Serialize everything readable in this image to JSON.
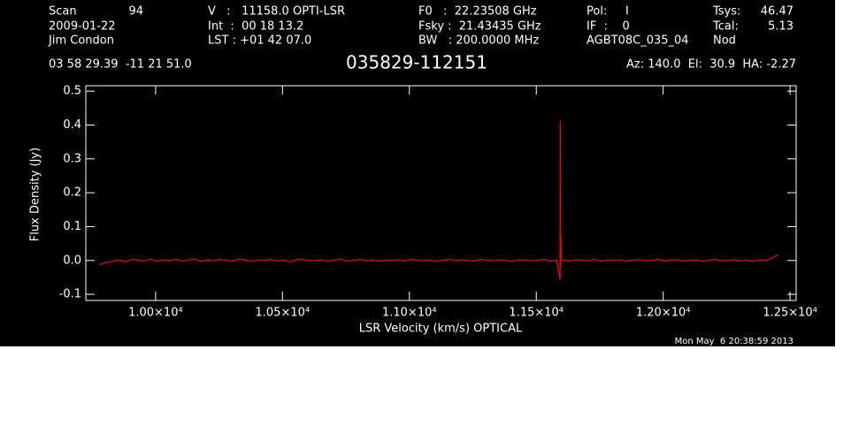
{
  "header": {
    "scan_label": "Scan",
    "scan": "94",
    "velocity": "V   :   11158.0 OPTI-LSR",
    "f0": "F0   :  22.23508 GHz",
    "pol": "Pol:     I",
    "tsys_label": "Tsys:",
    "tsys": "46.47",
    "date": "2009-01-22",
    "int": "Int  :  00 18 13.2",
    "fsky": "Fsky :  21.43435 GHz",
    "if": "IF  :    0",
    "tcal_label": "Tcal:",
    "tcal": "5.13",
    "observer": "Jim Condon",
    "lst": "LST : +01 42 07.0",
    "bw": "BW   : 200.0000 MHz",
    "project": "AGBT08C_035_04",
    "mode": "Nod",
    "coords": "03 58 29.39  -11 21 51.0",
    "azel": "Az: 140.0  El:  30.9  HA: -2.27"
  },
  "chart_data": {
    "type": "line",
    "title": "035829-112151",
    "x_label": "LSR Velocity (km/s) OPTICAL",
    "y_label": "Flux Density (Jy)",
    "timestamp": "Mon May  6 20:38:59 2013",
    "xlim": [
      9725,
      12524
    ],
    "ylim": [
      -0.118,
      0.516
    ],
    "xticks": [
      {
        "value": 10000,
        "label": "1.00×10⁴"
      },
      {
        "value": 10500,
        "label": "1.05×10⁴"
      },
      {
        "value": 11000,
        "label": "1.10×10⁴"
      },
      {
        "value": 11500,
        "label": "1.15×10⁴"
      },
      {
        "value": 12000,
        "label": "1.20×10⁴"
      },
      {
        "value": 12500,
        "label": "1.25×10⁴"
      }
    ],
    "yticks": [
      -0.1,
      {
        "value": 0,
        "label": "0.0"
      },
      0.1,
      0.2,
      0.3,
      0.4,
      0.5
    ],
    "series": [
      {
        "color": "#ff0000",
        "x": [
          9780,
          9805,
          9830,
          9855,
          9880,
          9905,
          9930,
          9955,
          9980,
          10005,
          10030,
          10055,
          10080,
          10105,
          10130,
          10155,
          10180,
          10205,
          10230,
          10255,
          10280,
          10305,
          10330,
          10355,
          10380,
          10405,
          10430,
          10455,
          10480,
          10505,
          10530,
          10555,
          10580,
          10605,
          10630,
          10655,
          10680,
          10705,
          10730,
          10755,
          10780,
          10805,
          10830,
          10855,
          10880,
          10905,
          10930,
          10955,
          10980,
          11005,
          11030,
          11055,
          11080,
          11105,
          11130,
          11155,
          11180,
          11205,
          11230,
          11255,
          11280,
          11305,
          11330,
          11355,
          11380,
          11405,
          11430,
          11455,
          11480,
          11505,
          11530,
          11555,
          11580,
          11594,
          11595,
          11596,
          11597,
          11598,
          11605,
          11630,
          11655,
          11680,
          11705,
          11730,
          11755,
          11780,
          11805,
          11830,
          11855,
          11880,
          11905,
          11930,
          11955,
          11980,
          12005,
          12030,
          12055,
          12080,
          12105,
          12130,
          12155,
          12180,
          12205,
          12230,
          12255,
          12280,
          12305,
          12330,
          12355,
          12380,
          12405,
          12430,
          12455
        ],
        "values": [
          -0.012,
          -0.006,
          -0.003,
          0.002,
          -0.004,
          0.003,
          0.001,
          -0.002,
          0.004,
          -0.003,
          0.002,
          0,
          0.003,
          -0.002,
          0.001,
          0.004,
          -0.003,
          0.002,
          -0.001,
          0.003,
          0,
          -0.002,
          0.004,
          0.001,
          -0.003,
          0.002,
          0,
          0.003,
          -0.002,
          0.001,
          -0.004,
          0.002,
          0.003,
          -0.001,
          0,
          0.002,
          -0.003,
          0.001,
          0.004,
          -0.002,
          0,
          0.003,
          -0.001,
          0.002,
          -0.003,
          0.001,
          0,
          0.002,
          -0.002,
          0.003,
          0.001,
          -0.001,
          0.002,
          -0.003,
          0,
          0.003,
          -0.001,
          0.002,
          0,
          -0.002,
          0.003,
          0.001,
          -0.001,
          0.002,
          0,
          -0.003,
          0.001,
          0.002,
          -0.001,
          0,
          0.003,
          -0.002,
          0.001,
          -0.058,
          0.412,
          -0.02,
          0.07,
          0.003,
          0.001,
          -0.002,
          0.002,
          0,
          -0.001,
          0.003,
          -0.002,
          0.001,
          0,
          0.002,
          -0.003,
          0.001,
          0.002,
          -0.001,
          0,
          0.003,
          -0.002,
          0.001,
          0.002,
          -0.001,
          0,
          0.002,
          -0.003,
          0.001,
          0.003,
          -0.001,
          0,
          0.002,
          -0.002,
          0.001,
          -0.003,
          0.002,
          0,
          0.008,
          0.018
        ]
      }
    ]
  }
}
